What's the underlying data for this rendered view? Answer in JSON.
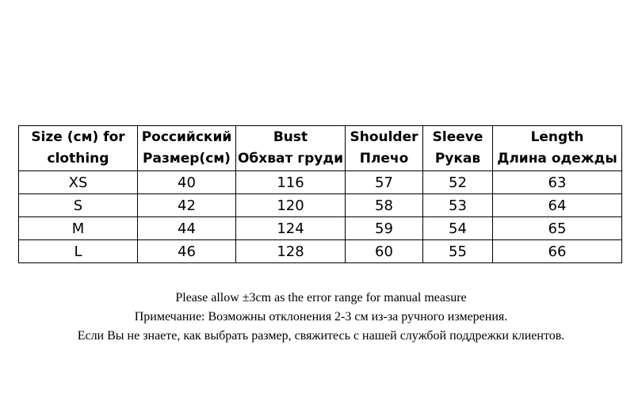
{
  "table": {
    "headers": [
      {
        "line1": "Size (см) for",
        "line2": "clothing"
      },
      {
        "line1": "Российский",
        "line2": "Размер(см)"
      },
      {
        "line1": "Bust",
        "line2": "Обхват груди"
      },
      {
        "line1": "Shoulder",
        "line2": "Плечо"
      },
      {
        "line1": "Sleeve",
        "line2": "Рукав"
      },
      {
        "line1": "Length",
        "line2": "Длина одежды"
      }
    ],
    "rows": [
      [
        "XS",
        "40",
        "116",
        "57",
        "52",
        "63"
      ],
      [
        "S",
        "42",
        "120",
        "58",
        "53",
        "64"
      ],
      [
        "M",
        "44",
        "124",
        "59",
        "54",
        "65"
      ],
      [
        "L",
        "46",
        "128",
        "60",
        "55",
        "66"
      ]
    ]
  },
  "notes": [
    "Please allow ±3cm as the error range for manual measure",
    "Примечание: Возможны отклонения 2-3 см из-за ручного измерения.",
    "Если Вы не знаете, как выбрать размер, свяжитесь с нашей службой поддрежки клиентов."
  ]
}
